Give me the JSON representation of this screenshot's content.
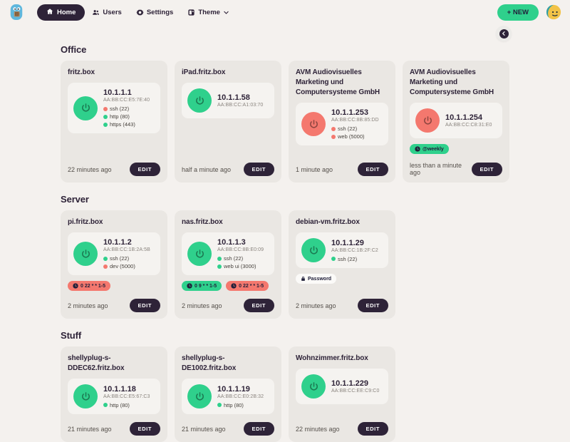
{
  "navbar": {
    "home": "Home",
    "users": "Users",
    "settings": "Settings",
    "theme": "Theme",
    "new_button": "+ NEW"
  },
  "colors": {
    "green": "#2fd08c",
    "red": "#f4786e",
    "dark": "#2e2338",
    "background": "#f4f1ee",
    "card": "#eae7e3"
  },
  "sections": [
    {
      "title": "Office",
      "cards": [
        {
          "title": "fritz.box",
          "ip": "10.1.1.1",
          "mac": "AA:BB:CC:E5:7E:40",
          "status": "green",
          "ports": [
            {
              "label": "ssh (22)",
              "color": "red"
            },
            {
              "label": "http (80)",
              "color": "green"
            },
            {
              "label": "https (443)",
              "color": "green"
            }
          ],
          "tags": [],
          "updated": "22 minutes ago",
          "edit_label": "EDIT"
        },
        {
          "title": "iPad.fritz.box",
          "ip": "10.1.1.58",
          "mac": "AA:BB:CC:A1:03:70",
          "status": "green",
          "ports": [],
          "tags": [],
          "updated": "half a minute ago",
          "edit_label": "EDIT"
        },
        {
          "title": "AVM Audiovisuelles Marketing und Computersysteme GmbH",
          "ip": "10.1.1.253",
          "mac": "AA:BB:CC:8B:85:DD",
          "status": "red",
          "ports": [
            {
              "label": "ssh (22)",
              "color": "red"
            },
            {
              "label": "web (5000)",
              "color": "red"
            }
          ],
          "tags": [],
          "updated": "1 minute ago",
          "edit_label": "EDIT"
        },
        {
          "title": "AVM Audiovisuelles Marketing und Computersysteme GmbH",
          "ip": "10.1.1.254",
          "mac": "AA:BB:CC:C8:31:E0",
          "status": "red",
          "ports": [],
          "tags": [
            {
              "label": "@weekly",
              "color": "green",
              "icon": "clock"
            }
          ],
          "updated": "less than a minute ago",
          "edit_label": "EDIT"
        }
      ]
    },
    {
      "title": "Server",
      "cards": [
        {
          "title": "pi.fritz.box",
          "ip": "10.1.1.2",
          "mac": "AA:BB:CC:1B:2A:5B",
          "status": "green",
          "ports": [
            {
              "label": "ssh (22)",
              "color": "green"
            },
            {
              "label": "dev (5000)",
              "color": "red"
            }
          ],
          "tags": [
            {
              "label": "0 22 * * 1-5",
              "color": "red",
              "icon": "clock"
            }
          ],
          "updated": "2 minutes ago",
          "edit_label": "EDIT"
        },
        {
          "title": "nas.fritz.box",
          "ip": "10.1.1.3",
          "mac": "AA:BB:CC:8B:E0:09",
          "status": "green",
          "ports": [
            {
              "label": "ssh (22)",
              "color": "green"
            },
            {
              "label": "web ui (3000)",
              "color": "green"
            }
          ],
          "tags": [
            {
              "label": "0 9 * * 1-5",
              "color": "green",
              "icon": "clock"
            },
            {
              "label": "0 22 * * 1-5",
              "color": "red",
              "icon": "clock"
            }
          ],
          "updated": "2 minutes ago",
          "edit_label": "EDIT"
        },
        {
          "title": "debian-vm.fritz.box",
          "ip": "10.1.1.29",
          "mac": "AA:BB:CC:1B:2F:C2",
          "status": "green",
          "ports": [
            {
              "label": "ssh (22)",
              "color": "green"
            }
          ],
          "tags": [
            {
              "label": "Password",
              "color": "white",
              "icon": "lock"
            }
          ],
          "updated": "2 minutes ago",
          "edit_label": "EDIT"
        }
      ]
    },
    {
      "title": "Stuff",
      "cards": [
        {
          "title": "shellyplug-s-DDEC62.fritz.box",
          "ip": "10.1.1.18",
          "mac": "AA:BB:CC:E5:67:C3",
          "status": "green",
          "ports": [
            {
              "label": "http (80)",
              "color": "green"
            }
          ],
          "tags": [],
          "updated": "21 minutes ago",
          "edit_label": "EDIT"
        },
        {
          "title": "shellyplug-s-DE1002.fritz.box",
          "ip": "10.1.1.19",
          "mac": "AA:BB:CC:E0:2B:32",
          "status": "green",
          "ports": [
            {
              "label": "http (80)",
              "color": "green"
            }
          ],
          "tags": [],
          "updated": "21 minutes ago",
          "edit_label": "EDIT"
        },
        {
          "title": "Wohnzimmer.fritz.box",
          "ip": "10.1.1.229",
          "mac": "AA:BB:CC:EE:C9:C0",
          "status": "green",
          "ports": [],
          "tags": [],
          "updated": "22 minutes ago",
          "edit_label": "EDIT"
        }
      ]
    }
  ]
}
